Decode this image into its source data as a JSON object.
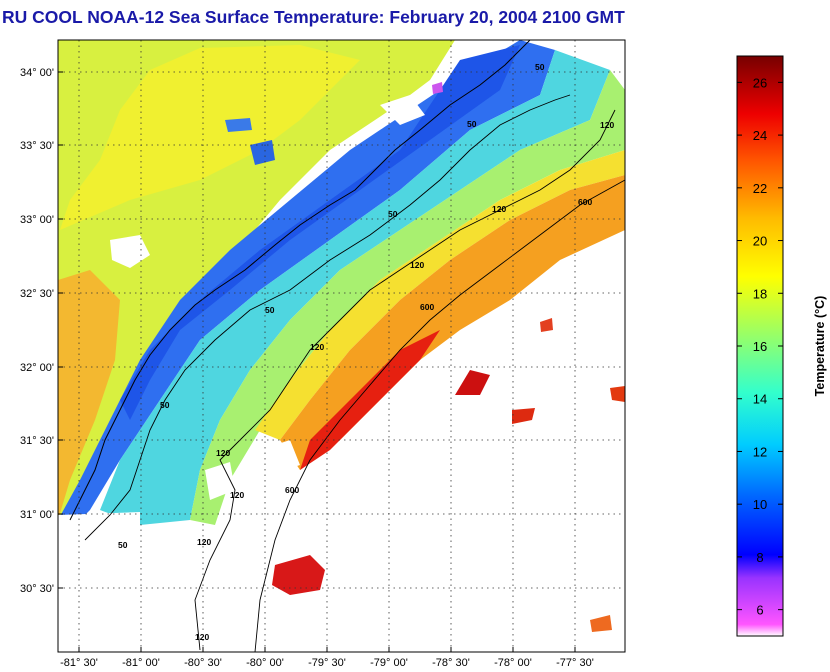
{
  "title": "RU COOL  NOAA-12  Sea Surface Temperature:  February 20, 2004 2100 GMT",
  "map": {
    "lat_labels": [
      "34° 00'",
      "33° 30'",
      "33° 00'",
      "32° 30'",
      "32° 00'",
      "31° 30'",
      "31° 00'",
      "30° 30'"
    ],
    "lon_labels": [
      "-81° 30'",
      "-81° 00'",
      "-80° 30'",
      "-80° 00'",
      "-79° 30'",
      "-79° 00'",
      "-78° 30'",
      "-78° 00'",
      "-77° 30'"
    ],
    "contour_labels": [
      "50",
      "50",
      "50",
      "50",
      "50",
      "50",
      "120",
      "120",
      "120",
      "120",
      "120",
      "120",
      "120",
      "120",
      "600",
      "600",
      "600"
    ],
    "grid": true
  },
  "colorbar": {
    "label": "Temperature (°C)",
    "ticks": [
      "26",
      "24",
      "22",
      "20",
      "18",
      "16",
      "14",
      "12",
      "10",
      "8",
      "6"
    ],
    "min": 5,
    "max": 27,
    "colors": [
      "#ff66ff",
      "#0000cc",
      "#0066ff",
      "#00ccff",
      "#66ffcc",
      "#ccff66",
      "#ffee00",
      "#ffaa00",
      "#ff5500",
      "#ee0000",
      "#880000"
    ]
  }
}
